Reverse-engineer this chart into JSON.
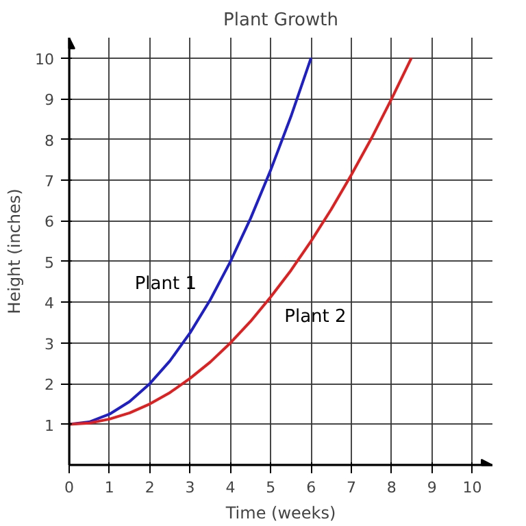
{
  "chart_data": {
    "type": "line",
    "title": "Plant Growth",
    "xlabel": "Time (weeks)",
    "ylabel": "Height (inches)",
    "xlim": [
      0,
      10.5
    ],
    "ylim": [
      0,
      10.5
    ],
    "xticks": [
      0,
      1,
      2,
      3,
      4,
      5,
      6,
      7,
      8,
      9,
      10
    ],
    "yticks": [
      1,
      2,
      3,
      4,
      5,
      6,
      7,
      8,
      9,
      10
    ],
    "grid": true,
    "legend": false,
    "marker": "none",
    "line_style": "solid",
    "series": [
      {
        "name": "Plant 1",
        "color": "#1f1fc8",
        "x": [
          0,
          0.5,
          1,
          1.5,
          2,
          2.5,
          3,
          3.5,
          4,
          4.5,
          5,
          5.5,
          6
        ],
        "values": [
          1,
          1.06,
          1.25,
          1.56,
          2,
          2.56,
          3.25,
          4.06,
          5,
          6.06,
          7.25,
          8.56,
          10
        ]
      },
      {
        "name": "Plant 2",
        "color": "#e02020",
        "x": [
          0,
          0.5,
          1,
          1.5,
          2,
          2.5,
          3,
          3.5,
          4,
          4.5,
          5,
          5.5,
          6,
          6.5,
          7,
          7.5,
          8,
          8.49
        ],
        "values": [
          1,
          1.03,
          1.13,
          1.28,
          1.5,
          1.78,
          2.13,
          2.53,
          3,
          3.53,
          4.13,
          4.78,
          5.5,
          6.28,
          7.13,
          8.03,
          9,
          10
        ]
      }
    ]
  }
}
